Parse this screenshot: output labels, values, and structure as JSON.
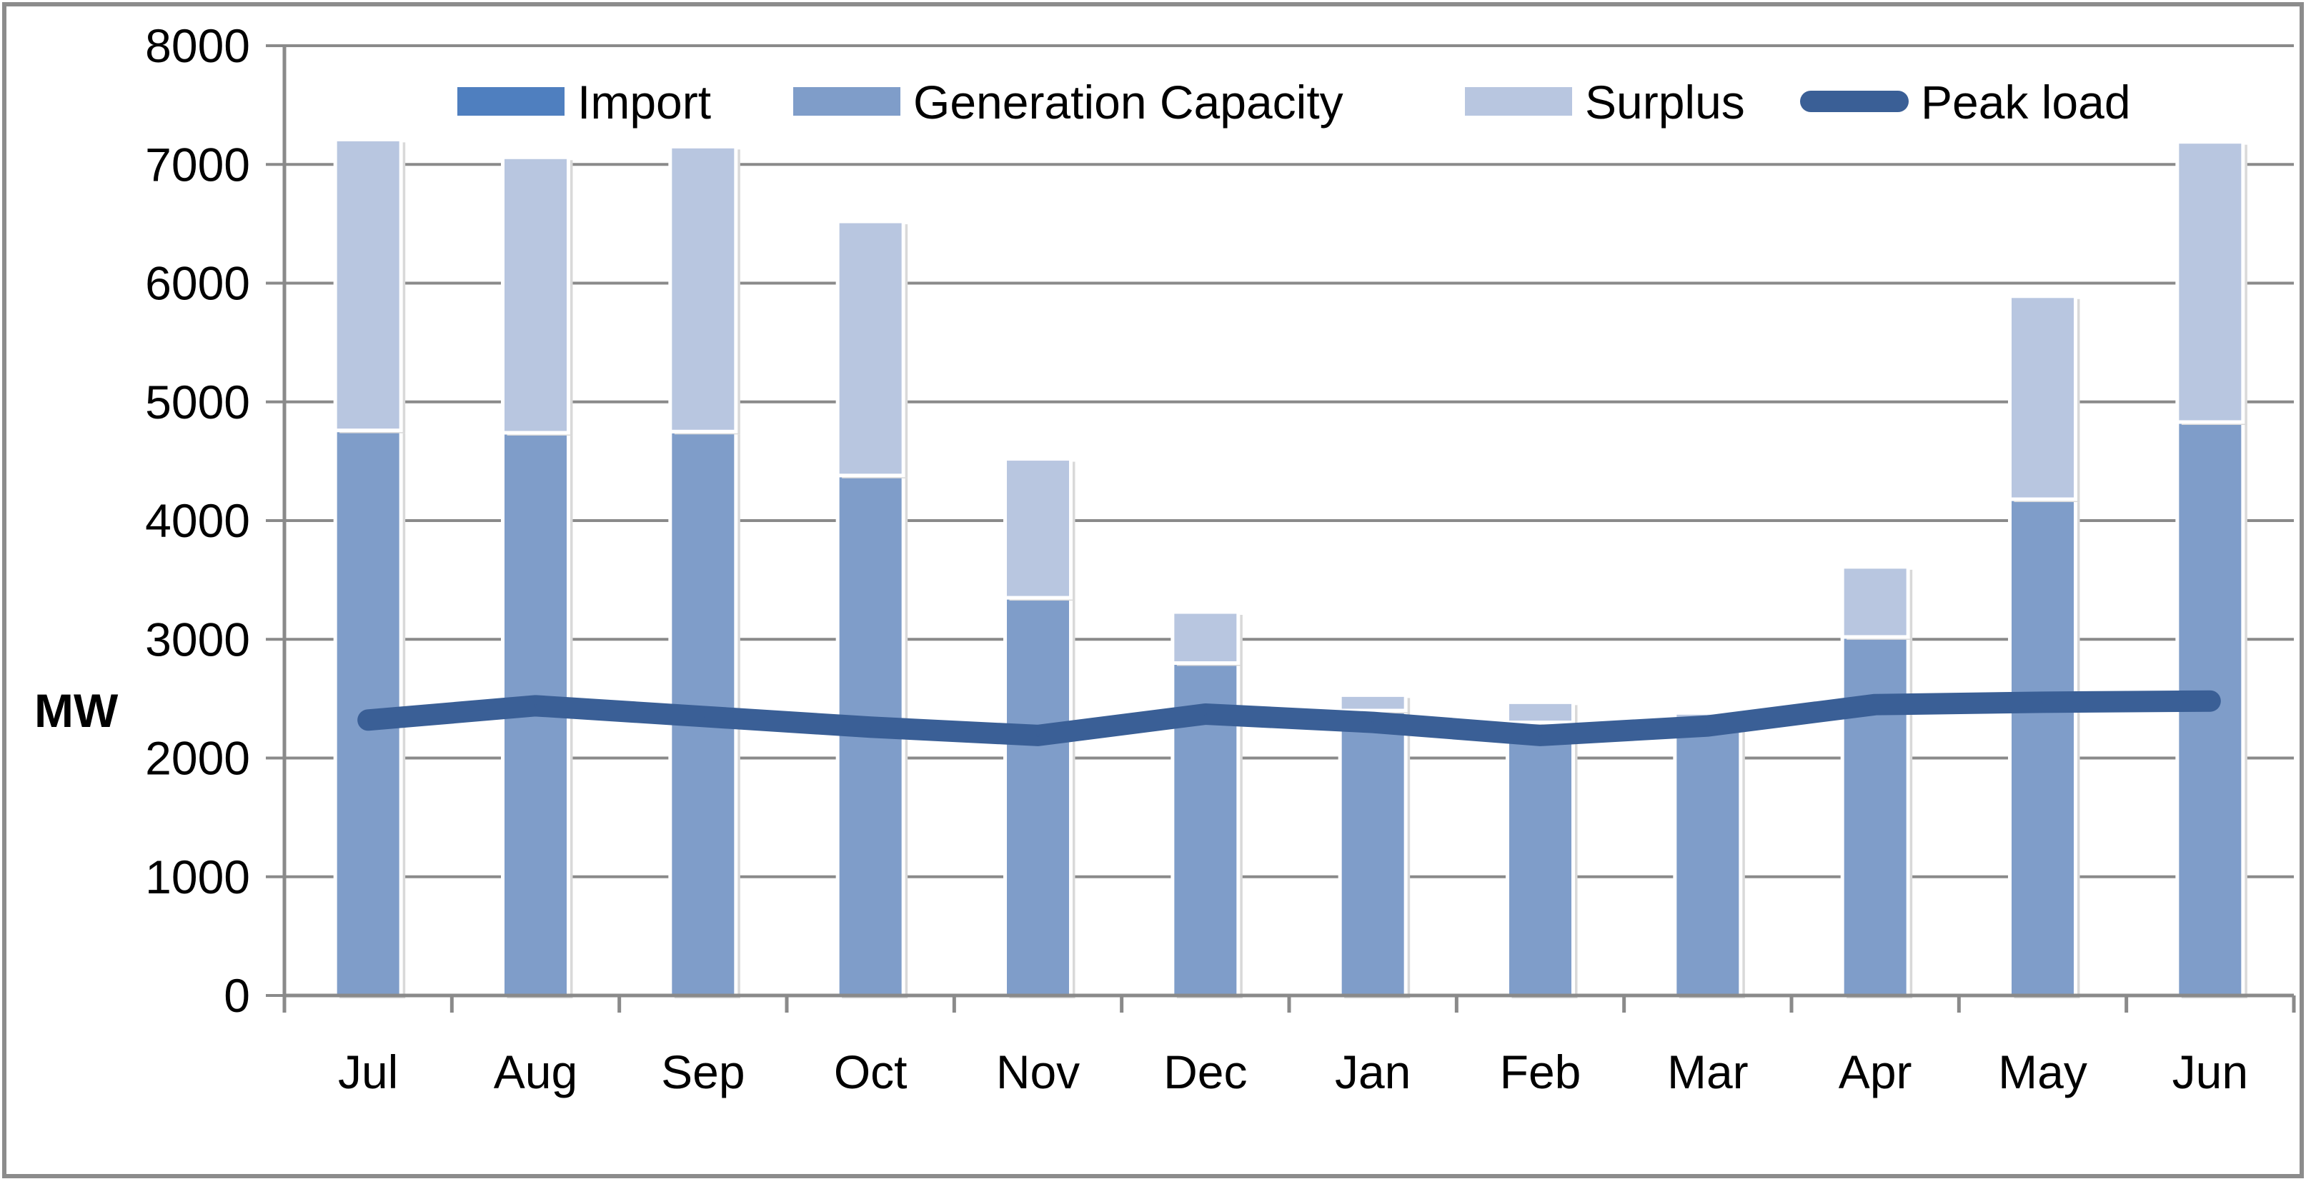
{
  "chart_data": {
    "type": "bar",
    "stacked": true,
    "categories": [
      "Jul",
      "Aug",
      "Sep",
      "Oct",
      "Nov",
      "Dec",
      "Jan",
      "Feb",
      "Mar",
      "Apr",
      "May",
      "Jun"
    ],
    "series": [
      {
        "name": "Import",
        "kind": "bar",
        "color": "#4F7FBF",
        "values": [
          0,
          0,
          0,
          0,
          0,
          0,
          0,
          0,
          0,
          0,
          0,
          0
        ]
      },
      {
        "name": "Generation Capacity",
        "kind": "bar",
        "color": "#7F9DC9",
        "values": [
          4760,
          4740,
          4750,
          4380,
          3350,
          2800,
          2400,
          2300,
          2320,
          3020,
          4180,
          4830
        ]
      },
      {
        "name": "Surplus",
        "kind": "bar",
        "color": "#B8C6E0",
        "values": [
          2450,
          2320,
          2400,
          2140,
          1170,
          430,
          130,
          170,
          60,
          590,
          1710,
          2360
        ]
      },
      {
        "name": "Peak load",
        "kind": "line",
        "color": "#3A5F96",
        "values": [
          2320,
          2440,
          2350,
          2260,
          2190,
          2370,
          2300,
          2190,
          2270,
          2450,
          2470,
          2480
        ]
      }
    ],
    "title": "",
    "xlabel": "",
    "ylabel": "MW",
    "ylim": [
      0,
      8000
    ],
    "yticks": [
      0,
      1000,
      2000,
      3000,
      4000,
      5000,
      6000,
      7000,
      8000
    ],
    "grid": true,
    "legend_position": "top"
  }
}
